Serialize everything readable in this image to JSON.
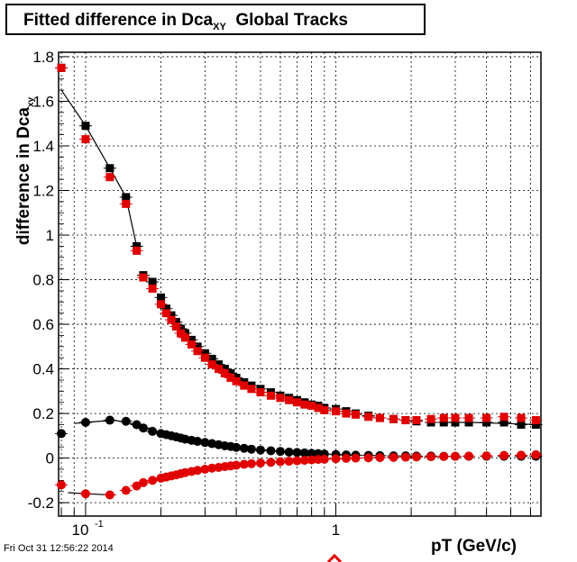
{
  "title": {
    "main": "Fitted difference in Dca",
    "sub": "XY",
    "rest": "  Global Tracks"
  },
  "ylabel": {
    "main": "difference in Dca",
    "sub": "xy"
  },
  "xlabel": "pT (GeV/c)",
  "footer_date": "Fri Oct 31 12:56:22 2014",
  "colors": {
    "black_series": "#000000",
    "red_series": "#e00000"
  },
  "chart_data": {
    "type": "scatter",
    "title": "Fitted difference in Dca_XY  Global Tracks",
    "xlabel": "pT (GeV/c)",
    "ylabel": "difference in Dca_xy",
    "xscale": "log",
    "xlim": [
      0.078,
      6.6
    ],
    "ylim": [
      -0.26,
      1.82
    ],
    "y_ticks": [
      "-0.2",
      "0",
      "0.2",
      "0.4",
      "0.6",
      "0.8",
      "1",
      "1.2",
      "1.4",
      "1.6",
      "1.8"
    ],
    "x_tick_labels": [
      {
        "value": 0.1,
        "base": "10",
        "exp": "-1"
      },
      {
        "value": 1,
        "base": "1",
        "exp": ""
      }
    ],
    "grid": true,
    "series": [
      {
        "marker": "square",
        "color": "#000000",
        "x": [
          0.08,
          0.1,
          0.125,
          0.145,
          0.16,
          0.17,
          0.185,
          0.2,
          0.21,
          0.22,
          0.23,
          0.24,
          0.25,
          0.265,
          0.28,
          0.3,
          0.32,
          0.34,
          0.36,
          0.38,
          0.4,
          0.43,
          0.46,
          0.5,
          0.55,
          0.6,
          0.65,
          0.7,
          0.75,
          0.8,
          0.85,
          0.9,
          1.0,
          1.1,
          1.2,
          1.35,
          1.5,
          1.7,
          1.9,
          2.1,
          2.4,
          2.7,
          3.0,
          3.4,
          4.0,
          4.7,
          5.5,
          6.3
        ],
        "y": [
          1.75,
          1.49,
          1.3,
          1.17,
          0.95,
          0.82,
          0.79,
          0.72,
          0.67,
          0.64,
          0.61,
          0.58,
          0.56,
          0.53,
          0.5,
          0.47,
          0.445,
          0.42,
          0.4,
          0.38,
          0.36,
          0.34,
          0.325,
          0.31,
          0.295,
          0.28,
          0.27,
          0.26,
          0.25,
          0.24,
          0.235,
          0.225,
          0.22,
          0.21,
          0.2,
          0.19,
          0.18,
          0.175,
          0.17,
          0.165,
          0.16,
          0.16,
          0.16,
          0.16,
          0.16,
          0.16,
          0.15,
          0.15
        ]
      },
      {
        "marker": "square",
        "color": "#e00000",
        "x": [
          0.08,
          0.1,
          0.125,
          0.145,
          0.16,
          0.17,
          0.185,
          0.2,
          0.21,
          0.22,
          0.23,
          0.24,
          0.25,
          0.265,
          0.28,
          0.3,
          0.32,
          0.34,
          0.36,
          0.38,
          0.4,
          0.43,
          0.46,
          0.5,
          0.55,
          0.6,
          0.65,
          0.7,
          0.75,
          0.8,
          0.85,
          0.9,
          1.0,
          1.1,
          1.2,
          1.35,
          1.5,
          1.7,
          1.9,
          2.1,
          2.4,
          2.7,
          3.0,
          3.4,
          4.0,
          4.7,
          5.5,
          6.3
        ],
        "y": [
          1.75,
          1.43,
          1.26,
          1.14,
          0.93,
          0.81,
          0.76,
          0.69,
          0.65,
          0.62,
          0.59,
          0.56,
          0.54,
          0.51,
          0.48,
          0.45,
          0.42,
          0.4,
          0.38,
          0.36,
          0.345,
          0.325,
          0.31,
          0.295,
          0.28,
          0.27,
          0.26,
          0.25,
          0.24,
          0.235,
          0.225,
          0.215,
          0.21,
          0.2,
          0.195,
          0.185,
          0.18,
          0.175,
          0.17,
          0.17,
          0.175,
          0.18,
          0.18,
          0.18,
          0.18,
          0.185,
          0.18,
          0.17
        ]
      },
      {
        "marker": "circle",
        "color": "#000000",
        "x": [
          0.08,
          0.1,
          0.125,
          0.145,
          0.16,
          0.17,
          0.185,
          0.2,
          0.21,
          0.22,
          0.23,
          0.24,
          0.25,
          0.265,
          0.28,
          0.3,
          0.32,
          0.34,
          0.36,
          0.38,
          0.4,
          0.43,
          0.46,
          0.5,
          0.55,
          0.6,
          0.65,
          0.7,
          0.75,
          0.8,
          0.85,
          0.9,
          1.0,
          1.1,
          1.2,
          1.35,
          1.5,
          1.7,
          1.9,
          2.1,
          2.4,
          2.7,
          3.0,
          3.4,
          4.0,
          4.7,
          5.5,
          6.3
        ],
        "y": [
          0.11,
          0.16,
          0.17,
          0.165,
          0.15,
          0.135,
          0.12,
          0.11,
          0.105,
          0.1,
          0.095,
          0.09,
          0.085,
          0.08,
          0.075,
          0.07,
          0.065,
          0.06,
          0.055,
          0.052,
          0.048,
          0.044,
          0.04,
          0.036,
          0.033,
          0.03,
          0.027,
          0.025,
          0.023,
          0.021,
          0.02,
          0.018,
          0.016,
          0.014,
          0.013,
          0.012,
          0.011,
          0.01,
          0.01,
          0.009,
          0.009,
          0.008,
          0.008,
          0.008,
          0.008,
          0.008,
          0.008,
          0.008
        ]
      },
      {
        "marker": "circle",
        "color": "#e00000",
        "x": [
          0.08,
          0.1,
          0.125,
          0.145,
          0.16,
          0.17,
          0.185,
          0.2,
          0.21,
          0.22,
          0.23,
          0.24,
          0.25,
          0.265,
          0.28,
          0.3,
          0.32,
          0.34,
          0.36,
          0.38,
          0.4,
          0.43,
          0.46,
          0.5,
          0.55,
          0.6,
          0.65,
          0.7,
          0.75,
          0.8,
          0.85,
          0.9,
          1.0,
          1.1,
          1.2,
          1.35,
          1.5,
          1.7,
          1.9,
          2.1,
          2.4,
          2.7,
          3.0,
          3.4,
          4.0,
          4.7,
          5.5,
          6.3
        ],
        "y": [
          -0.12,
          -0.16,
          -0.165,
          -0.145,
          -0.125,
          -0.11,
          -0.1,
          -0.09,
          -0.085,
          -0.08,
          -0.075,
          -0.07,
          -0.065,
          -0.06,
          -0.055,
          -0.05,
          -0.045,
          -0.042,
          -0.038,
          -0.035,
          -0.032,
          -0.028,
          -0.025,
          -0.022,
          -0.019,
          -0.016,
          -0.014,
          -0.012,
          -0.01,
          -0.008,
          -0.006,
          -0.005,
          -0.003,
          -0.001,
          0.0,
          0.001,
          0.002,
          0.003,
          0.004,
          0.005,
          0.006,
          0.007,
          0.008,
          0.009,
          0.01,
          0.012,
          0.013,
          0.015
        ]
      }
    ],
    "fit_lines": [
      {
        "color": "#000000",
        "x": [
          0.08,
          0.1,
          0.125,
          0.145,
          0.16
        ],
        "y": [
          1.65,
          1.49,
          1.3,
          1.17,
          0.95
        ]
      },
      {
        "color": "#000000",
        "x": [
          0.09,
          0.1,
          0.13,
          0.16,
          0.2
        ],
        "y": [
          0.155,
          0.16,
          0.17,
          0.15,
          0.11
        ]
      },
      {
        "color": "#000000",
        "x": [
          0.085,
          0.1,
          0.125
        ],
        "y": [
          -0.155,
          -0.16,
          -0.165
        ]
      },
      {
        "color": "#000000",
        "x": [
          2.7,
          3.5,
          4.7,
          6.6
        ],
        "y": [
          0.16,
          0.16,
          0.155,
          0.15
        ]
      }
    ]
  }
}
